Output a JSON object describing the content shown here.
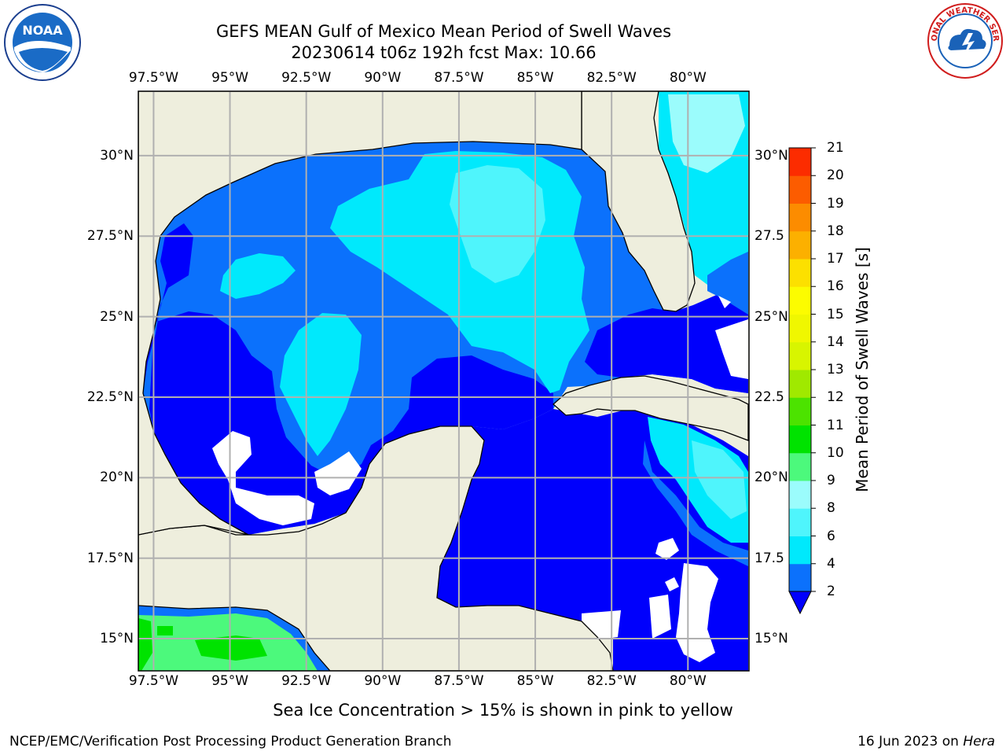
{
  "header": {
    "title": "GEFS MEAN Gulf of Mexico Mean Period of Swell Waves",
    "subtitle": "20230614 t06z 192h fcst   Max: 10.66"
  },
  "logos": {
    "noaa": {
      "text": "NOAA",
      "icon": "noaa-logo"
    },
    "nws": {
      "text": "NATIONAL WEATHER SERVICE",
      "icon": "nws-logo"
    }
  },
  "map": {
    "lon_ticks": [
      "97.5°W",
      "95°W",
      "92.5°W",
      "90°W",
      "87.5°W",
      "85°W",
      "82.5°W",
      "80°W"
    ],
    "lat_ticks_left": [
      "30°N",
      "27.5°N",
      "25°N",
      "22.5°N",
      "20°N",
      "17.5°N",
      "15°N"
    ],
    "lat_ticks_right": [
      "30°N",
      "27.5",
      "25°N",
      "22.5",
      "20°N",
      "17.5",
      "15°N"
    ],
    "lon_range": [
      -98,
      -78
    ],
    "lat_range": [
      14,
      32
    ],
    "colors": {
      "land": "#eeeedd",
      "grid": "#b0b0b0",
      "coast": "#000000",
      "ocean_no_data": "#ffffff"
    }
  },
  "colorbar": {
    "title": "Mean Period of Swell Waves [s]",
    "levels": [
      "2",
      "4",
      "6",
      "8",
      "9",
      "10",
      "11",
      "12",
      "13",
      "14",
      "15",
      "16",
      "17",
      "18",
      "19",
      "20",
      "21"
    ],
    "colors": [
      "#0b71fc",
      "#00e9fc",
      "#4ff5fc",
      "#9bfcfc",
      "#4cf97c",
      "#00e300",
      "#4ce300",
      "#a0e900",
      "#d8f500",
      "#f0f700",
      "#fcfc00",
      "#fce000",
      "#fcb000",
      "#fc8c00",
      "#fc5c00",
      "#fc2c00"
    ],
    "extend_color": "#0000fc"
  },
  "footer": {
    "note": "Sea Ice Concentration > 15% is shown in pink to yellow",
    "left": "NCEP/EMC/Verification Post Processing Product Generation Branch",
    "right_date": "16 Jun 2023 on",
    "right_host": "Hera"
  }
}
